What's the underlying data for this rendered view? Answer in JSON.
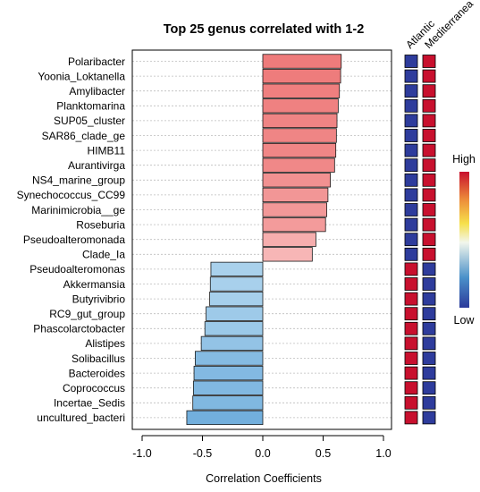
{
  "chart_data": {
    "type": "bar",
    "orientation": "horizontal",
    "title": "Top 25 genus correlated with 1-2",
    "xlabel": "Correlation Coefficients",
    "xlim": [
      -1.1,
      1.0
    ],
    "xticks": [
      "-1.0",
      "-0.5",
      "0.0",
      "0.5",
      "1.0"
    ],
    "grid": "horizontal dotted",
    "categories": [
      "Polaribacter",
      "Yoonia_Loktanella",
      "Amylibacter",
      "Planktomarina",
      "SUP05_cluster",
      "SAR86_clade_ge",
      "HIMB11",
      "Aurantivirga",
      "NS4_marine_group",
      "Synechococcus_CC99",
      "Marinimicrobia__ge",
      "Roseburia",
      "Pseudoalteromonada",
      "Clade_Ia",
      "Pseudoalteromonas",
      "Akkermansia",
      "Butyrivibrio",
      "RC9_gut_group",
      "Phascolarctobacter",
      "Alistipes",
      "Solibacillus",
      "Bacteroides",
      "Coprococcus",
      "Incertae_Sedis",
      "uncultured_bacteri"
    ],
    "values": [
      0.65,
      0.645,
      0.635,
      0.625,
      0.615,
      0.61,
      0.605,
      0.595,
      0.56,
      0.54,
      0.53,
      0.52,
      0.44,
      0.41,
      -0.43,
      -0.435,
      -0.44,
      -0.47,
      -0.48,
      -0.51,
      -0.56,
      -0.57,
      -0.575,
      -0.58,
      -0.63
    ],
    "annotation_columns": [
      "Atlantic",
      "Mediterranea"
    ],
    "annotation_colors": {
      "high": "#c8102e",
      "low": "#2e3c9c"
    },
    "annotation_rule": "positive correlation: Atlantic low, Mediterranea high; negative correlation: Atlantic high, Mediterranea low",
    "color_scale": {
      "high_label": "High",
      "low_label": "Low",
      "colors": [
        "#2b3a9b",
        "#4a90c9",
        "#e8f1e6",
        "#f5e24a",
        "#e87a3a",
        "#c8102e"
      ]
    }
  }
}
